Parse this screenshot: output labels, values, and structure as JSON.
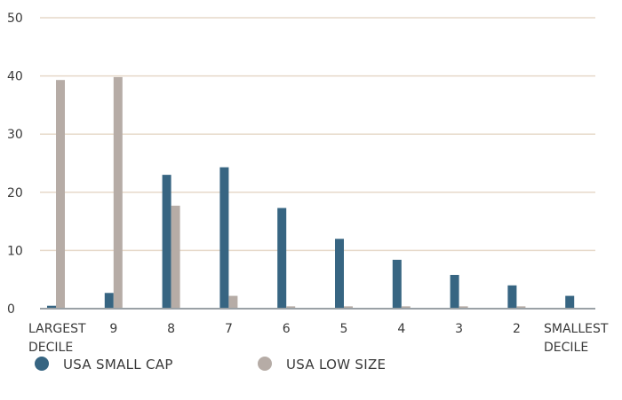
{
  "chart_data": {
    "type": "bar",
    "categories": [
      [
        "LARGEST",
        "DECILE"
      ],
      [
        "9"
      ],
      [
        "8"
      ],
      [
        "7"
      ],
      [
        "6"
      ],
      [
        "5"
      ],
      [
        "4"
      ],
      [
        "3"
      ],
      [
        "2"
      ],
      [
        "SMALLEST",
        "DECILE"
      ]
    ],
    "series": [
      {
        "name": "USA SMALL CAP",
        "color": "#376582",
        "values": [
          0.5,
          2.7,
          23.0,
          24.3,
          17.3,
          12.0,
          8.4,
          5.8,
          4.0,
          2.2
        ]
      },
      {
        "name": "USA LOW SIZE",
        "color": "#b6aca6",
        "values": [
          39.3,
          39.8,
          17.7,
          2.2,
          0.4,
          0.4,
          0.4,
          0.4,
          0.4,
          0.0
        ]
      }
    ],
    "y_ticks": [
      0,
      10,
      20,
      30,
      40,
      50
    ],
    "ylim": [
      0,
      50
    ],
    "title": "",
    "xlabel": "",
    "ylabel": "",
    "grid": true,
    "gridline_color": "#e6d9c9",
    "legend_position": "bottom-left"
  }
}
